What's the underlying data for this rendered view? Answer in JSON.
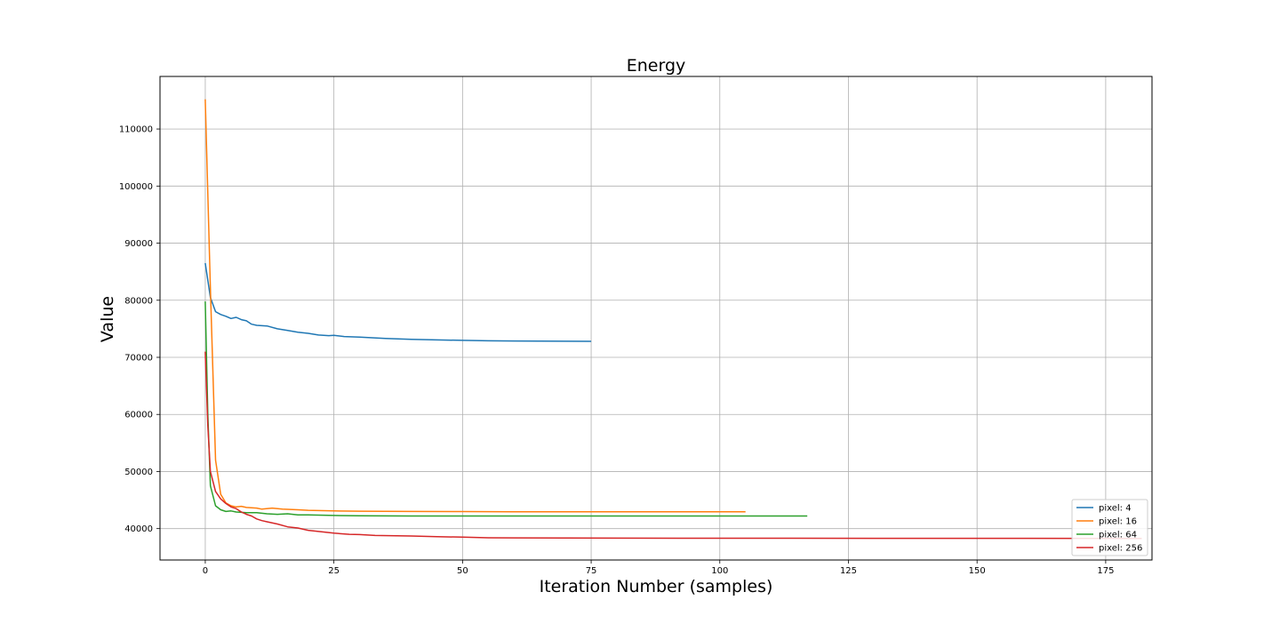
{
  "chart_data": {
    "type": "line",
    "title": "Energy",
    "xlabel": "Iteration Number (samples)",
    "ylabel": "Value",
    "xlim": [
      -8.8,
      184
    ],
    "ylim": [
      34500,
      119200
    ],
    "xticks": [
      0,
      25,
      50,
      75,
      100,
      125,
      150,
      175
    ],
    "yticks": [
      40000,
      50000,
      60000,
      70000,
      80000,
      90000,
      100000,
      110000
    ],
    "grid": true,
    "legend_position": "lower-right",
    "colors": {
      "pixel_4": "#1f77b4",
      "pixel_16": "#ff7f0e",
      "pixel_64": "#2ca02c",
      "pixel_256": "#d62728"
    },
    "series": [
      {
        "name": "pixel: 4",
        "color": "#1f77b4",
        "end": 75,
        "points": [
          [
            0,
            86500
          ],
          [
            1,
            80500
          ],
          [
            2,
            78000
          ],
          [
            3,
            77500
          ],
          [
            4,
            77200
          ],
          [
            5,
            76800
          ],
          [
            6,
            77000
          ],
          [
            7,
            76600
          ],
          [
            8,
            76400
          ],
          [
            9,
            75800
          ],
          [
            10,
            75600
          ],
          [
            12,
            75500
          ],
          [
            14,
            75000
          ],
          [
            16,
            74700
          ],
          [
            18,
            74400
          ],
          [
            20,
            74200
          ],
          [
            22,
            73900
          ],
          [
            24,
            73800
          ],
          [
            25,
            73850
          ],
          [
            27,
            73650
          ],
          [
            30,
            73550
          ],
          [
            35,
            73300
          ],
          [
            40,
            73150
          ],
          [
            45,
            73050
          ],
          [
            50,
            72980
          ],
          [
            55,
            72900
          ],
          [
            60,
            72860
          ],
          [
            65,
            72830
          ],
          [
            70,
            72810
          ],
          [
            75,
            72800
          ]
        ]
      },
      {
        "name": "pixel: 16",
        "color": "#ff7f0e",
        "end": 105,
        "points": [
          [
            0,
            115200
          ],
          [
            1,
            82000
          ],
          [
            2,
            52000
          ],
          [
            3,
            46000
          ],
          [
            4,
            44500
          ],
          [
            5,
            44000
          ],
          [
            6,
            43800
          ],
          [
            7,
            43900
          ],
          [
            8,
            43700
          ],
          [
            10,
            43600
          ],
          [
            11,
            43400
          ],
          [
            13,
            43600
          ],
          [
            15,
            43400
          ],
          [
            18,
            43300
          ],
          [
            20,
            43200
          ],
          [
            25,
            43100
          ],
          [
            30,
            43050
          ],
          [
            40,
            43000
          ],
          [
            50,
            42980
          ],
          [
            60,
            42960
          ],
          [
            80,
            42950
          ],
          [
            105,
            42940
          ]
        ]
      },
      {
        "name": "pixel: 64",
        "color": "#2ca02c",
        "end": 117,
        "points": [
          [
            0,
            79800
          ],
          [
            0.5,
            60000
          ],
          [
            1,
            47500
          ],
          [
            2,
            44000
          ],
          [
            3,
            43300
          ],
          [
            4,
            43000
          ],
          [
            5,
            43100
          ],
          [
            6,
            42900
          ],
          [
            8,
            42800
          ],
          [
            10,
            42800
          ],
          [
            12,
            42600
          ],
          [
            14,
            42500
          ],
          [
            16,
            42600
          ],
          [
            18,
            42400
          ],
          [
            20,
            42400
          ],
          [
            25,
            42300
          ],
          [
            30,
            42250
          ],
          [
            40,
            42200
          ],
          [
            50,
            42200
          ],
          [
            60,
            42200
          ],
          [
            80,
            42200
          ],
          [
            117,
            42200
          ]
        ]
      },
      {
        "name": "pixel: 256",
        "color": "#d62728",
        "end": 182,
        "points": [
          [
            0,
            71000
          ],
          [
            0.5,
            58000
          ],
          [
            1,
            50000
          ],
          [
            2,
            46500
          ],
          [
            3,
            45200
          ],
          [
            4,
            44400
          ],
          [
            5,
            43800
          ],
          [
            6,
            43500
          ],
          [
            7,
            42900
          ],
          [
            8,
            42500
          ],
          [
            9,
            42200
          ],
          [
            10,
            41700
          ],
          [
            11,
            41400
          ],
          [
            12,
            41200
          ],
          [
            14,
            40800
          ],
          [
            16,
            40300
          ],
          [
            18,
            40100
          ],
          [
            20,
            39700
          ],
          [
            22,
            39500
          ],
          [
            25,
            39200
          ],
          [
            28,
            39000
          ],
          [
            30,
            38950
          ],
          [
            33,
            38800
          ],
          [
            40,
            38700
          ],
          [
            45,
            38600
          ],
          [
            50,
            38500
          ],
          [
            55,
            38400
          ],
          [
            60,
            38380
          ],
          [
            70,
            38350
          ],
          [
            80,
            38330
          ],
          [
            100,
            38310
          ],
          [
            130,
            38300
          ],
          [
            160,
            38295
          ],
          [
            182,
            38290
          ]
        ]
      }
    ]
  }
}
